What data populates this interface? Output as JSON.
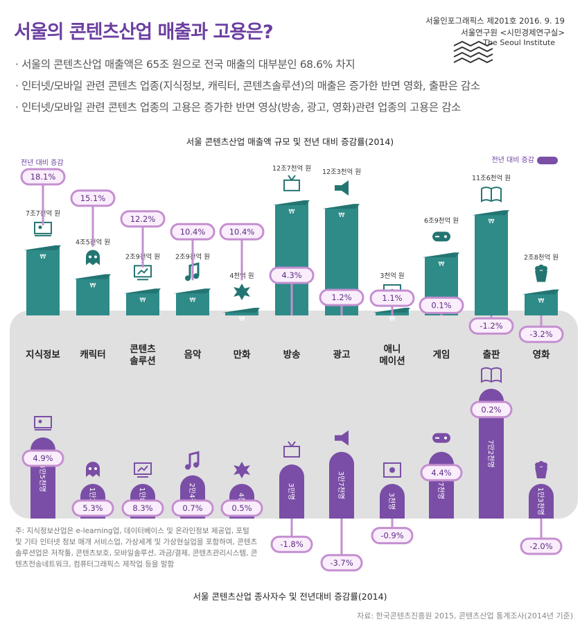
{
  "header": {
    "title": "서울의 콘텐츠산업 매출과 고용은?",
    "issue": "서울인포그래픽스 제201호 2016. 9. 19",
    "org": "서울연구원 <시민경제연구실>",
    "org_en": "The Seoul Institute"
  },
  "bullets": [
    "서울의 콘텐츠산업 매출액은 65조 원으로 전국 매출의 대부분인 68.6% 차지",
    "인터넷/모바일 관련 콘텐츠 업종(지식정보, 캐릭터, 콘텐츠솔루션)의 매출은 증가한 반면 영화, 출판은 감소",
    "인터넷/모바일 관련 콘텐츠 업종의 고용은 증가한 반면 영상(방송, 광고, 영화)관련 업종의 고용은 감소"
  ],
  "legend_label": "전년 대비 증감",
  "note": "주: 지식정보산업은 e-learning업, 데이터베이스 및 온라인정보 제공업, 포털 및 기타 인터넷 정보 매개 서비스업, 가상세계 및 가상현실업을 포함하여, 콘텐츠솔루션업은 저작툴, 콘텐츠보호, 모바일솔루션, 과금/결제, 콘텐츠관리시스템, 콘텐츠전송네트워크, 컴퓨터그래픽스 제작업 등을 말함",
  "source": "자료: 한국콘텐츠진흥원 2015, 콘텐츠산업 통계조사(2014년 기준)",
  "chart_data": [
    {
      "type": "bar",
      "title": "서울 콘텐츠산업 매출액 규모 및 전년 대비 증감률(2014)",
      "categories": [
        "지식정보",
        "캐릭터",
        "콘텐츠\n솔루션",
        "음악",
        "만화",
        "방송",
        "광고",
        "애니\n메이션",
        "게임",
        "출판",
        "영화"
      ],
      "value_labels": [
        "7조7천억 원",
        "4조5천억 원",
        "2조9천억 원",
        "2조9천억 원",
        "4천억 원",
        "12조7천억 원",
        "12조3천억 원",
        "3천억 원",
        "6조9천억 원",
        "11조6천억 원",
        "2조8천억 원"
      ],
      "values": [
        7.7,
        4.5,
        2.9,
        2.9,
        0.4,
        12.7,
        12.3,
        0.3,
        6.9,
        11.6,
        2.8
      ],
      "change_labels": [
        "18.1%",
        "15.1%",
        "12.2%",
        "10.4%",
        "10.4%",
        "4.3%",
        "1.2%",
        "1.1%",
        "0.1%",
        "-1.2%",
        "-3.2%"
      ],
      "change": [
        18.1,
        15.1,
        12.2,
        10.4,
        10.4,
        4.3,
        1.2,
        1.1,
        0.1,
        -1.2,
        -3.2
      ],
      "icons": [
        "presenter-icon",
        "ghost-icon",
        "monitor-chart-icon",
        "music-note-icon",
        "comic-burst-icon",
        "tv-icon",
        "megaphone-icon",
        "film-icon",
        "gamepad-icon",
        "book-icon",
        "popcorn-icon"
      ],
      "colors": {
        "bar": "#2e8b88",
        "bar_top": "#237572",
        "change": "#c48fd0"
      }
    },
    {
      "type": "bar",
      "title": "서울 콘텐츠산업 종사자수 및 전년대비 증감률(2014)",
      "categories": [
        "지식정보",
        "캐릭터",
        "콘텐츠\n솔루션",
        "음악",
        "만화",
        "방송",
        "광고",
        "애니\n메이션",
        "게임",
        "출판",
        "영화"
      ],
      "value_labels": [
        "4만5천명",
        "1만3천명",
        "1만8천명",
        "2만4천명",
        "4천명",
        "3만명",
        "3만7천명",
        "3천명",
        "3만7천명",
        "7만2천명",
        "1만3천명"
      ],
      "values": [
        4.5,
        1.3,
        1.8,
        2.4,
        0.4,
        3.0,
        3.7,
        0.3,
        3.7,
        7.2,
        1.3
      ],
      "change_labels": [
        "4.9%",
        "5.3%",
        "8.3%",
        "0.7%",
        "0.5%",
        "-1.8%",
        "-3.7%",
        "-0.9%",
        "4.4%",
        "0.2%",
        "-2.0%"
      ],
      "change": [
        4.9,
        5.3,
        8.3,
        0.7,
        0.5,
        -1.8,
        -3.7,
        -0.9,
        4.4,
        0.2,
        -2.0
      ],
      "colors": {
        "bar": "#7a4ea6",
        "change": "#c48fd0"
      }
    }
  ]
}
